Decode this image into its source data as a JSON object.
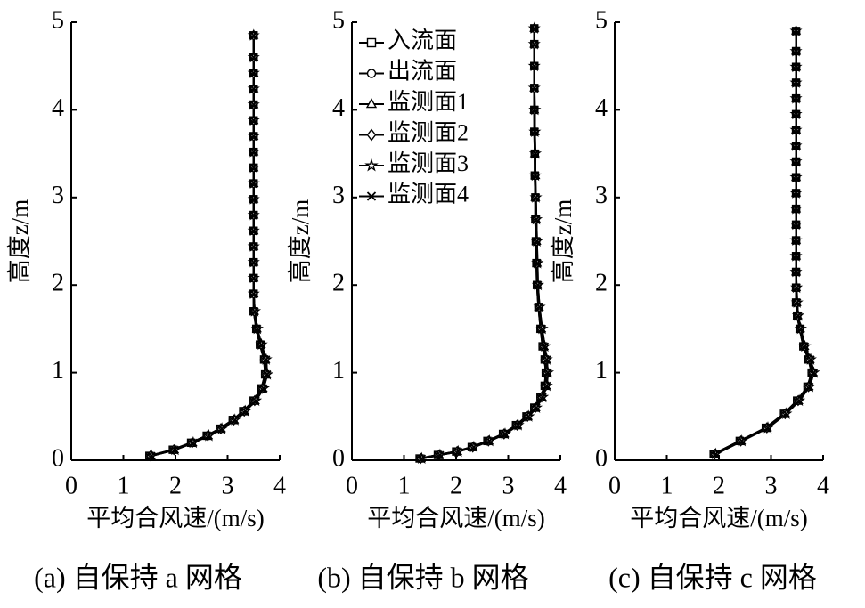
{
  "chart_data": [
    {
      "type": "line",
      "caption": "(a)  自保持 a 网格",
      "xlabel": "平均合风速/(m/s)",
      "ylabel": "高度z/m",
      "xlim": [
        0,
        4
      ],
      "ylim": [
        0,
        5
      ],
      "xticks": [
        0,
        1,
        2,
        3,
        4
      ],
      "yticks": [
        0,
        1,
        2,
        3,
        4,
        5
      ],
      "color": "#000000",
      "y": [
        0.05,
        0.12,
        0.2,
        0.28,
        0.36,
        0.46,
        0.56,
        0.68,
        0.82,
        0.98,
        1.15,
        1.32,
        1.5,
        1.7,
        1.9,
        2.08,
        2.26,
        2.44,
        2.62,
        2.8,
        2.98,
        3.16,
        3.34,
        3.52,
        3.7,
        3.88,
        4.06,
        4.24,
        4.42,
        4.6,
        4.85
      ],
      "series": [
        {
          "marker": "square",
          "values": [
            1.5,
            1.95,
            2.3,
            2.6,
            2.85,
            3.1,
            3.3,
            3.5,
            3.65,
            3.72,
            3.7,
            3.62,
            3.55,
            3.5,
            3.5,
            3.5,
            3.5,
            3.5,
            3.5,
            3.5,
            3.5,
            3.5,
            3.5,
            3.5,
            3.5,
            3.5,
            3.5,
            3.5,
            3.5,
            3.5,
            3.5
          ]
        },
        {
          "marker": "circle",
          "values": [
            1.5,
            1.95,
            2.3,
            2.6,
            2.85,
            3.1,
            3.3,
            3.5,
            3.65,
            3.72,
            3.7,
            3.62,
            3.55,
            3.5,
            3.5,
            3.5,
            3.5,
            3.5,
            3.5,
            3.5,
            3.5,
            3.5,
            3.5,
            3.5,
            3.5,
            3.5,
            3.5,
            3.5,
            3.5,
            3.5,
            3.5
          ]
        },
        {
          "marker": "triangle",
          "values": [
            1.52,
            1.97,
            2.32,
            2.62,
            2.87,
            3.12,
            3.32,
            3.52,
            3.67,
            3.74,
            3.72,
            3.64,
            3.56,
            3.51,
            3.5,
            3.5,
            3.5,
            3.5,
            3.5,
            3.5,
            3.5,
            3.5,
            3.5,
            3.5,
            3.5,
            3.5,
            3.5,
            3.5,
            3.5,
            3.5,
            3.5
          ]
        },
        {
          "marker": "diamond",
          "values": [
            1.52,
            1.97,
            2.32,
            2.62,
            2.87,
            3.12,
            3.32,
            3.52,
            3.67,
            3.74,
            3.72,
            3.64,
            3.56,
            3.51,
            3.5,
            3.5,
            3.5,
            3.5,
            3.5,
            3.5,
            3.5,
            3.5,
            3.5,
            3.5,
            3.5,
            3.5,
            3.5,
            3.5,
            3.5,
            3.5,
            3.5
          ]
        },
        {
          "marker": "star",
          "values": [
            1.54,
            1.99,
            2.34,
            2.64,
            2.89,
            3.14,
            3.34,
            3.54,
            3.69,
            3.76,
            3.74,
            3.65,
            3.57,
            3.52,
            3.5,
            3.5,
            3.5,
            3.5,
            3.5,
            3.5,
            3.5,
            3.5,
            3.5,
            3.5,
            3.5,
            3.5,
            3.5,
            3.5,
            3.5,
            3.5,
            3.5
          ]
        },
        {
          "marker": "x",
          "values": [
            1.54,
            1.99,
            2.34,
            2.64,
            2.89,
            3.14,
            3.34,
            3.54,
            3.69,
            3.76,
            3.74,
            3.65,
            3.57,
            3.52,
            3.5,
            3.5,
            3.5,
            3.5,
            3.5,
            3.5,
            3.5,
            3.5,
            3.5,
            3.5,
            3.5,
            3.5,
            3.5,
            3.5,
            3.5,
            3.5,
            3.5
          ]
        }
      ]
    },
    {
      "type": "line",
      "caption": "(b)  自保持 b 网格",
      "xlabel": "平均合风速/(m/s)",
      "ylabel": "高度z/m",
      "xlim": [
        0,
        4
      ],
      "ylim": [
        0,
        5
      ],
      "xticks": [
        0,
        1,
        2,
        3,
        4
      ],
      "yticks": [
        0,
        1,
        2,
        3,
        4,
        5
      ],
      "color": "#000000",
      "legend": "upper left",
      "y": [
        0.02,
        0.06,
        0.1,
        0.15,
        0.22,
        0.3,
        0.4,
        0.5,
        0.6,
        0.72,
        0.85,
        1.0,
        1.15,
        1.3,
        1.5,
        1.75,
        2.0,
        2.25,
        2.5,
        2.75,
        3.0,
        3.25,
        3.5,
        3.75,
        4.0,
        4.25,
        4.5,
        4.75,
        4.93
      ],
      "series": [
        {
          "name": "入流面",
          "marker": "square",
          "values": [
            1.3,
            1.65,
            2.0,
            2.3,
            2.6,
            2.9,
            3.15,
            3.35,
            3.5,
            3.62,
            3.7,
            3.72,
            3.7,
            3.66,
            3.62,
            3.58,
            3.55,
            3.54,
            3.53,
            3.52,
            3.52,
            3.51,
            3.51,
            3.5,
            3.5,
            3.5,
            3.5,
            3.5,
            3.5
          ]
        },
        {
          "name": "出流面",
          "marker": "circle",
          "values": [
            1.3,
            1.65,
            2.0,
            2.3,
            2.6,
            2.9,
            3.15,
            3.35,
            3.5,
            3.62,
            3.7,
            3.72,
            3.7,
            3.66,
            3.62,
            3.58,
            3.55,
            3.54,
            3.53,
            3.52,
            3.52,
            3.51,
            3.51,
            3.5,
            3.5,
            3.5,
            3.5,
            3.5,
            3.5
          ]
        },
        {
          "name": "监测面1",
          "marker": "triangle",
          "values": [
            1.32,
            1.67,
            2.02,
            2.32,
            2.62,
            2.92,
            3.17,
            3.37,
            3.52,
            3.64,
            3.72,
            3.74,
            3.72,
            3.68,
            3.63,
            3.59,
            3.56,
            3.55,
            3.54,
            3.53,
            3.52,
            3.52,
            3.51,
            3.51,
            3.5,
            3.5,
            3.5,
            3.5,
            3.5
          ]
        },
        {
          "name": "监测面2",
          "marker": "diamond",
          "values": [
            1.32,
            1.67,
            2.02,
            2.32,
            2.62,
            2.92,
            3.17,
            3.37,
            3.52,
            3.64,
            3.72,
            3.74,
            3.72,
            3.68,
            3.63,
            3.59,
            3.56,
            3.55,
            3.54,
            3.53,
            3.52,
            3.52,
            3.51,
            3.51,
            3.5,
            3.5,
            3.5,
            3.5,
            3.5
          ]
        },
        {
          "name": "监测面3",
          "marker": "star",
          "values": [
            1.34,
            1.69,
            2.04,
            2.34,
            2.64,
            2.94,
            3.19,
            3.39,
            3.54,
            3.66,
            3.74,
            3.76,
            3.74,
            3.7,
            3.65,
            3.6,
            3.57,
            3.56,
            3.55,
            3.54,
            3.53,
            3.52,
            3.52,
            3.51,
            3.51,
            3.5,
            3.5,
            3.5,
            3.5
          ]
        },
        {
          "name": "监测面4",
          "marker": "x",
          "values": [
            1.34,
            1.69,
            2.04,
            2.34,
            2.64,
            2.94,
            3.19,
            3.39,
            3.54,
            3.66,
            3.74,
            3.76,
            3.74,
            3.7,
            3.65,
            3.6,
            3.57,
            3.56,
            3.55,
            3.54,
            3.53,
            3.52,
            3.52,
            3.51,
            3.51,
            3.5,
            3.5,
            3.5,
            3.5
          ]
        }
      ]
    },
    {
      "type": "line",
      "caption": "(c)  自保持 c 网格",
      "xlabel": "平均合风速/(m/s)",
      "ylabel": "高度z/m",
      "xlim": [
        0,
        4
      ],
      "ylim": [
        0,
        5
      ],
      "xticks": [
        0,
        1,
        2,
        3,
        4
      ],
      "yticks": [
        0,
        1,
        2,
        3,
        4,
        5
      ],
      "color": "#000000",
      "y": [
        0.07,
        0.22,
        0.37,
        0.53,
        0.68,
        0.84,
        1.0,
        1.15,
        1.3,
        1.5,
        1.65,
        1.8,
        1.97,
        2.15,
        2.33,
        2.51,
        2.69,
        2.87,
        3.05,
        3.23,
        3.41,
        3.59,
        3.77,
        3.95,
        4.13,
        4.31,
        4.49,
        4.67,
        4.9
      ],
      "series": [
        {
          "marker": "square",
          "values": [
            1.9,
            2.4,
            2.9,
            3.25,
            3.5,
            3.7,
            3.78,
            3.72,
            3.62,
            3.55,
            3.5,
            3.48,
            3.48,
            3.48,
            3.48,
            3.48,
            3.48,
            3.48,
            3.48,
            3.48,
            3.48,
            3.48,
            3.48,
            3.48,
            3.48,
            3.48,
            3.48,
            3.48,
            3.48
          ]
        },
        {
          "marker": "circle",
          "values": [
            1.9,
            2.4,
            2.9,
            3.25,
            3.5,
            3.7,
            3.78,
            3.72,
            3.62,
            3.55,
            3.5,
            3.48,
            3.48,
            3.48,
            3.48,
            3.48,
            3.48,
            3.48,
            3.48,
            3.48,
            3.48,
            3.48,
            3.48,
            3.48,
            3.48,
            3.48,
            3.48,
            3.48,
            3.48
          ]
        },
        {
          "marker": "triangle",
          "values": [
            1.92,
            2.42,
            2.92,
            3.27,
            3.52,
            3.72,
            3.8,
            3.74,
            3.64,
            3.56,
            3.51,
            3.49,
            3.48,
            3.48,
            3.48,
            3.48,
            3.48,
            3.48,
            3.48,
            3.48,
            3.48,
            3.48,
            3.48,
            3.48,
            3.48,
            3.48,
            3.48,
            3.48,
            3.48
          ]
        },
        {
          "marker": "diamond",
          "values": [
            1.92,
            2.42,
            2.92,
            3.27,
            3.52,
            3.72,
            3.8,
            3.74,
            3.64,
            3.56,
            3.51,
            3.49,
            3.48,
            3.48,
            3.48,
            3.48,
            3.48,
            3.48,
            3.48,
            3.48,
            3.48,
            3.48,
            3.48,
            3.48,
            3.48,
            3.48,
            3.48,
            3.48,
            3.48
          ]
        },
        {
          "marker": "star",
          "values": [
            1.94,
            2.44,
            2.94,
            3.29,
            3.54,
            3.74,
            3.82,
            3.76,
            3.65,
            3.57,
            3.52,
            3.5,
            3.49,
            3.48,
            3.48,
            3.48,
            3.48,
            3.48,
            3.48,
            3.48,
            3.48,
            3.48,
            3.48,
            3.48,
            3.48,
            3.48,
            3.48,
            3.48,
            3.48
          ]
        },
        {
          "marker": "x",
          "values": [
            1.94,
            2.44,
            2.94,
            3.29,
            3.54,
            3.74,
            3.82,
            3.76,
            3.65,
            3.57,
            3.52,
            3.5,
            3.49,
            3.48,
            3.48,
            3.48,
            3.48,
            3.48,
            3.48,
            3.48,
            3.48,
            3.48,
            3.48,
            3.48,
            3.48,
            3.48,
            3.48,
            3.48,
            3.48
          ]
        }
      ]
    }
  ]
}
